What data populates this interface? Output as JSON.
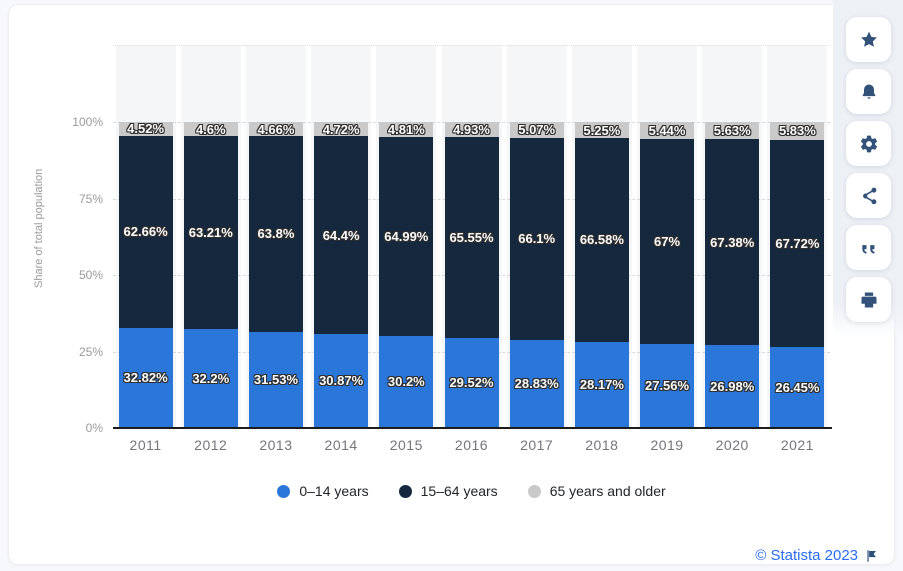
{
  "chart_data": {
    "type": "bar",
    "stacked": true,
    "categories": [
      "2011",
      "2012",
      "2013",
      "2014",
      "2015",
      "2016",
      "2017",
      "2018",
      "2019",
      "2020",
      "2021"
    ],
    "series": [
      {
        "name": "0–14 years",
        "color": "#2b76d9",
        "values": [
          32.82,
          32.2,
          31.53,
          30.87,
          30.2,
          29.52,
          28.83,
          28.17,
          27.56,
          26.98,
          26.45
        ],
        "labels": [
          "32.82%",
          "32.2%",
          "31.53%",
          "30.87%",
          "30.2%",
          "29.52%",
          "28.83%",
          "28.17%",
          "27.56%",
          "26.98%",
          "26.45%"
        ]
      },
      {
        "name": "15–64 years",
        "color": "#16283e",
        "values": [
          62.66,
          63.21,
          63.8,
          64.4,
          64.99,
          65.55,
          66.1,
          66.58,
          67,
          67.38,
          67.72
        ],
        "labels": [
          "62.66%",
          "63.21%",
          "63.8%",
          "64.4%",
          "64.99%",
          "65.55%",
          "66.1%",
          "66.58%",
          "67%",
          "67.38%",
          "67.72%"
        ]
      },
      {
        "name": "65 years and older",
        "color": "#c9c9c9",
        "values": [
          4.52,
          4.6,
          4.66,
          4.72,
          4.81,
          4.93,
          5.07,
          5.25,
          5.44,
          5.63,
          5.83
        ],
        "labels": [
          "4.52%",
          "4.6%",
          "4.66%",
          "4.72%",
          "4.81%",
          "4.93%",
          "5.07%",
          "5.25%",
          "5.44%",
          "5.63%",
          "5.83%"
        ]
      }
    ],
    "title": "",
    "xlabel": "",
    "ylabel": "Share of total population",
    "ylim": [
      0,
      100
    ],
    "yticks": [
      {
        "label": "0%",
        "value": 0
      },
      {
        "label": "25%",
        "value": 25
      },
      {
        "label": "50%",
        "value": 50
      },
      {
        "label": "75%",
        "value": 75
      },
      {
        "label": "100%",
        "value": 100
      }
    ],
    "grid": true,
    "legend_position": "bottom"
  },
  "footer": {
    "credit": "© Statista 2023"
  },
  "toolbar": {
    "buttons": [
      "favorite",
      "notifications",
      "settings",
      "share",
      "cite",
      "print"
    ]
  }
}
